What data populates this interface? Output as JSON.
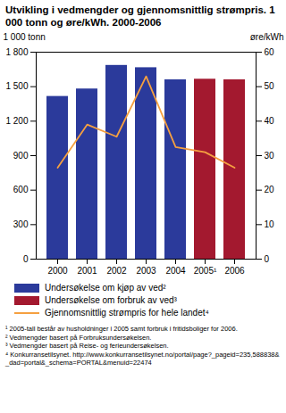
{
  "chart_data": {
    "type": "bar",
    "title": "Utvikling i vedmengder og gjennomsnittlig strømpris. 1 000 tonn og øre/kWh. 2000-2006",
    "y_label": "1 000 tonn",
    "y2_label": "øre/kWh",
    "categories": [
      "2000",
      "2001",
      "2002",
      "2003",
      "2004",
      "2005¹",
      "2006"
    ],
    "series": [
      {
        "name": "Undersøkelse om kjøp av ved²",
        "type": "bar",
        "color": "#2b3a9b",
        "values": [
          1415,
          1480,
          1685,
          1665,
          1560,
          null,
          null
        ]
      },
      {
        "name": "Undersøkelse om forbruk av ved³",
        "type": "bar",
        "color": "#a3192f",
        "values": [
          null,
          null,
          null,
          null,
          null,
          1565,
          1560
        ]
      },
      {
        "name": "Gjennomsnittlig strømpris for hele landet⁴",
        "type": "line",
        "axis": "y2",
        "color": "#f5a040",
        "values": [
          26.5,
          39,
          35.5,
          53,
          32.5,
          31,
          26.5
        ]
      }
    ],
    "ylim": [
      0,
      1800
    ],
    "yticks": [
      0,
      300,
      600,
      900,
      {
        "value": 1200,
        "label": "1 200"
      },
      {
        "value": 1500,
        "label": "1 500"
      },
      {
        "value": 1800,
        "label": "1 800"
      }
    ],
    "y2lim": [
      0,
      60
    ],
    "y2ticks": [
      0,
      10,
      20,
      30,
      40,
      50,
      60
    ],
    "grid": false,
    "legend": "bottom",
    "footnotes": [
      "¹ 2005-tall består av husholdninger i 2005 samt forbruk i fritidsboliger for 2006.",
      "² Vedmengder basert på Forbruksundersøkelsen.",
      "³ Vedmengder basert på Reise- og ferieundersøkelsen.",
      "⁴ Konkurransetilsynet. http://www.konkurransetilsynet.no/portal/page?_pageid=235,588838&_dad=portal&_schema=PORTAL&menuid=22474"
    ]
  }
}
